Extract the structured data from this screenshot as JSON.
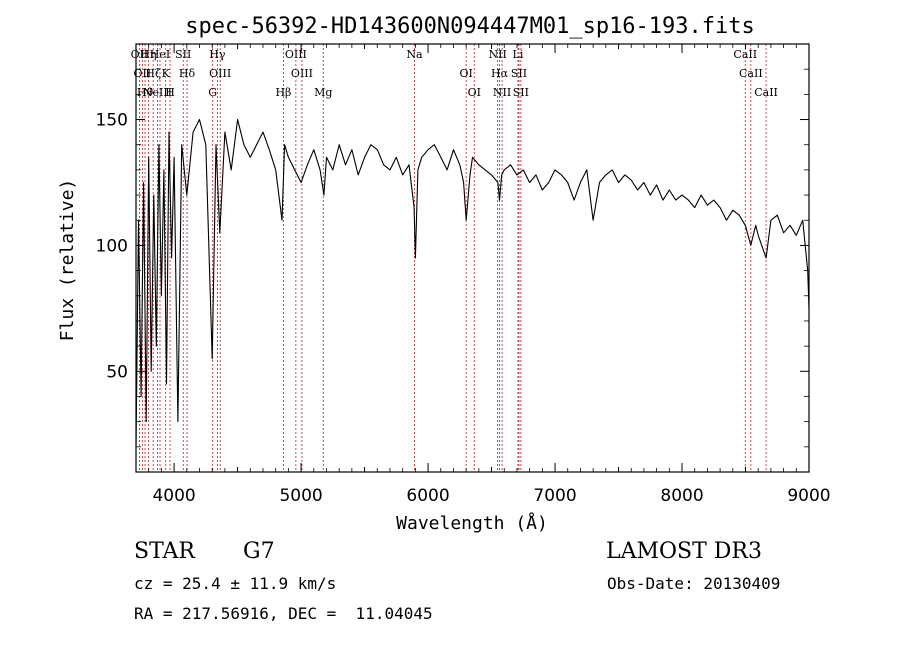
{
  "chart_data": {
    "type": "line",
    "title": "spec-56392-HD143600N094447M01_sp16-193.fits",
    "xlabel": "Wavelength (Å)",
    "ylabel": "Flux (relative)",
    "xlim": [
      3700,
      9000
    ],
    "ylim": [
      10,
      180
    ],
    "xticks": [
      4000,
      5000,
      6000,
      7000,
      8000,
      9000
    ],
    "xtick_labels": [
      "4000",
      "5000",
      "6000",
      "7000",
      "8000",
      "9000"
    ],
    "yticks": [
      50,
      100,
      150
    ],
    "ytick_labels": [
      "50",
      "100",
      "150"
    ],
    "line_color": "#000000",
    "marker_line_color": "#b22222",
    "series": [
      {
        "name": "flux",
        "x": [
          3700,
          3720,
          3740,
          3760,
          3780,
          3800,
          3820,
          3840,
          3860,
          3880,
          3900,
          3920,
          3940,
          3960,
          3980,
          4000,
          4030,
          4060,
          4100,
          4150,
          4200,
          4250,
          4300,
          4330,
          4360,
          4400,
          4450,
          4500,
          4550,
          4600,
          4650,
          4700,
          4750,
          4800,
          4850,
          4870,
          4900,
          4950,
          5000,
          5050,
          5100,
          5150,
          5180,
          5200,
          5250,
          5300,
          5350,
          5400,
          5450,
          5500,
          5550,
          5600,
          5650,
          5700,
          5750,
          5800,
          5850,
          5890,
          5900,
          5920,
          5950,
          6000,
          6050,
          6100,
          6150,
          6200,
          6250,
          6280,
          6300,
          6330,
          6350,
          6400,
          6450,
          6500,
          6550,
          6563,
          6580,
          6600,
          6650,
          6700,
          6750,
          6800,
          6850,
          6900,
          6950,
          7000,
          7050,
          7100,
          7150,
          7200,
          7250,
          7300,
          7350,
          7400,
          7450,
          7500,
          7550,
          7600,
          7650,
          7700,
          7750,
          7800,
          7850,
          7900,
          7950,
          8000,
          8050,
          8100,
          8150,
          8200,
          8250,
          8300,
          8350,
          8400,
          8450,
          8498,
          8542,
          8580,
          8600,
          8662,
          8700,
          8750,
          8800,
          8850,
          8900,
          8950,
          8970,
          8990,
          9000
        ],
        "y": [
          20,
          110,
          40,
          125,
          30,
          135,
          50,
          120,
          60,
          140,
          80,
          130,
          45,
          145,
          95,
          135,
          30,
          140,
          120,
          145,
          150,
          140,
          55,
          140,
          105,
          145,
          130,
          150,
          140,
          135,
          140,
          145,
          138,
          130,
          110,
          140,
          135,
          130,
          125,
          132,
          138,
          130,
          120,
          135,
          130,
          140,
          132,
          138,
          128,
          135,
          140,
          138,
          132,
          130,
          135,
          128,
          132,
          115,
          95,
          130,
          135,
          138,
          140,
          135,
          130,
          138,
          132,
          125,
          110,
          128,
          135,
          132,
          130,
          128,
          125,
          118,
          128,
          130,
          132,
          128,
          130,
          125,
          128,
          122,
          125,
          130,
          128,
          125,
          118,
          125,
          130,
          110,
          125,
          128,
          130,
          125,
          128,
          126,
          122,
          125,
          120,
          124,
          118,
          122,
          118,
          120,
          118,
          115,
          120,
          116,
          118,
          115,
          110,
          114,
          112,
          108,
          100,
          108,
          104,
          95,
          110,
          112,
          105,
          108,
          104,
          110,
          100,
          90,
          75
        ]
      }
    ],
    "line_markers": [
      {
        "wavelength": 3727,
        "label": "OII"
      },
      {
        "wavelength": 3750,
        "label": "OII"
      },
      {
        "wavelength": 3771,
        "label": "Hθ"
      },
      {
        "wavelength": 3798,
        "label": "Hη"
      },
      {
        "wavelength": 3835,
        "label": "Hζ"
      },
      {
        "wavelength": 3869,
        "label": "NeIII"
      },
      {
        "wavelength": 3889,
        "label": "HeI"
      },
      {
        "wavelength": 3934,
        "label": "K"
      },
      {
        "wavelength": 3968,
        "label": "H"
      },
      {
        "wavelength": 4072,
        "label": "SII"
      },
      {
        "wavelength": 4102,
        "label": "Hδ"
      },
      {
        "wavelength": 4304,
        "label": "G"
      },
      {
        "wavelength": 4341,
        "label": "Hγ"
      },
      {
        "wavelength": 4363,
        "label": "OIII"
      },
      {
        "wavelength": 4861,
        "label": "Hβ"
      },
      {
        "wavelength": 4959,
        "label": "OIII"
      },
      {
        "wavelength": 5007,
        "label": "OIII"
      },
      {
        "wavelength": 5175,
        "label": "Mg"
      },
      {
        "wavelength": 5893,
        "label": "Na"
      },
      {
        "wavelength": 6300,
        "label": "OI"
      },
      {
        "wavelength": 6364,
        "label": "OI"
      },
      {
        "wavelength": 6548,
        "label": "NII"
      },
      {
        "wavelength": 6563,
        "label": "Hα"
      },
      {
        "wavelength": 6583,
        "label": "NII"
      },
      {
        "wavelength": 6708,
        "label": "Li"
      },
      {
        "wavelength": 6716,
        "label": "SII"
      },
      {
        "wavelength": 6731,
        "label": "SII"
      },
      {
        "wavelength": 8498,
        "label": "CaII"
      },
      {
        "wavelength": 8542,
        "label": "CaII"
      },
      {
        "wavelength": 8662,
        "label": "CaII"
      }
    ]
  },
  "info": {
    "object_type": "STAR",
    "subclass": "G7",
    "survey": "LAMOST DR3",
    "cz": "cz = 25.4 ± 11.9 km/s",
    "obs_date": "Obs-Date: 20130409",
    "coords": "RA = 217.56916, DEC =  11.04045"
  }
}
